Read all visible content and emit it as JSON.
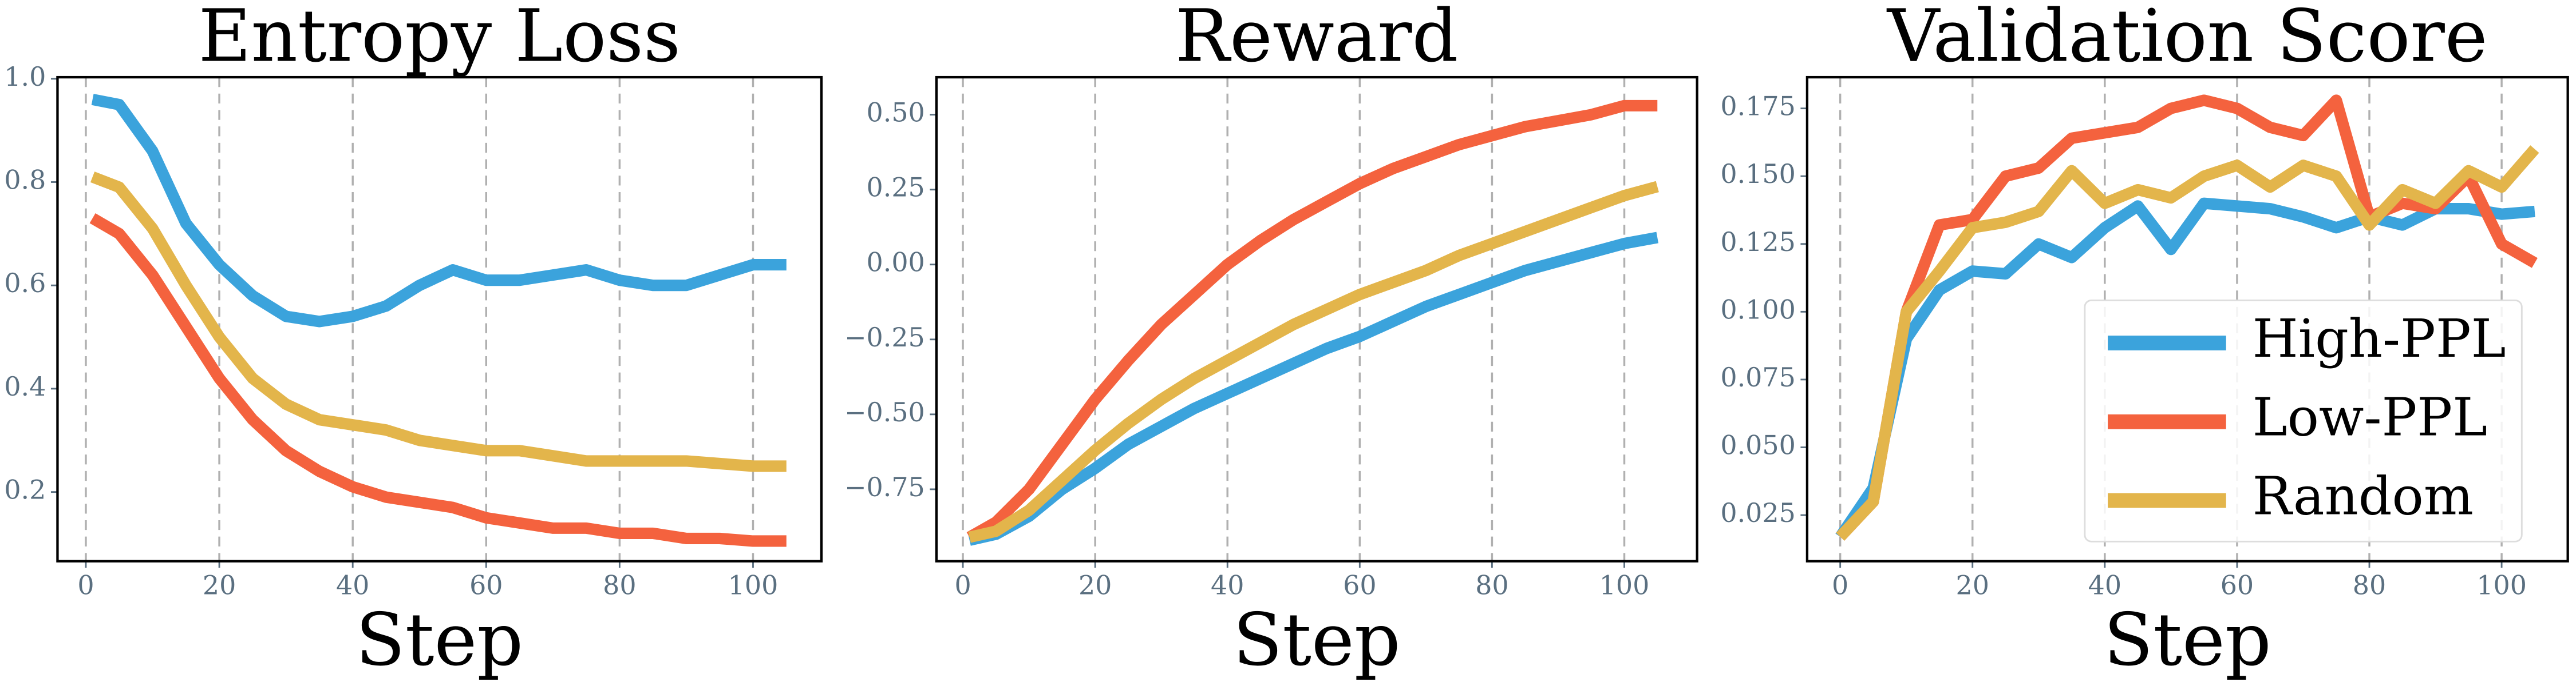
{
  "chart_data": [
    {
      "type": "line",
      "title": "Entropy Loss",
      "xlabel": "Step",
      "x": [
        1,
        5,
        10,
        15,
        20,
        25,
        30,
        35,
        40,
        45,
        50,
        55,
        60,
        65,
        70,
        75,
        80,
        85,
        90,
        95,
        100,
        105
      ],
      "series": [
        {
          "color": "#3ba3dc",
          "values": [
            0.96,
            0.95,
            0.86,
            0.72,
            0.64,
            0.58,
            0.54,
            0.53,
            0.54,
            0.56,
            0.6,
            0.63,
            0.61,
            0.61,
            0.62,
            0.63,
            0.61,
            0.6,
            0.6,
            0.62,
            0.64,
            0.64
          ]
        },
        {
          "color": "#f4623e",
          "values": [
            0.73,
            0.7,
            0.62,
            0.52,
            0.42,
            0.34,
            0.28,
            0.24,
            0.21,
            0.19,
            0.18,
            0.17,
            0.15,
            0.14,
            0.13,
            0.13,
            0.12,
            0.12,
            0.11,
            0.11,
            0.105,
            0.105
          ]
        },
        {
          "color": "#e3b54b",
          "values": [
            0.81,
            0.79,
            0.71,
            0.6,
            0.5,
            0.42,
            0.37,
            0.34,
            0.33,
            0.32,
            0.3,
            0.29,
            0.28,
            0.28,
            0.27,
            0.26,
            0.26,
            0.26,
            0.26,
            0.255,
            0.25,
            0.25
          ]
        }
      ],
      "xlim": [
        -4.25,
        110.25
      ],
      "ylim": [
        0.066,
        1.003
      ],
      "xticks": [
        0,
        20,
        40,
        60,
        80,
        100
      ],
      "yticks": [
        0.2,
        0.4,
        0.6,
        0.8,
        {
          "value": 1,
          "label": "1.0"
        }
      ],
      "grid": "x"
    },
    {
      "type": "line",
      "title": "Reward",
      "xlabel": "Step",
      "x": [
        1,
        5,
        10,
        15,
        20,
        25,
        30,
        35,
        40,
        45,
        50,
        55,
        60,
        65,
        70,
        75,
        80,
        85,
        90,
        95,
        100,
        105
      ],
      "series": [
        {
          "color": "#3ba3dc",
          "values": [
            -0.92,
            -0.9,
            -0.84,
            -0.75,
            -0.68,
            -0.6,
            -0.54,
            -0.48,
            -0.43,
            -0.38,
            -0.33,
            -0.28,
            -0.24,
            -0.19,
            -0.14,
            -0.1,
            -0.06,
            -0.02,
            0.01,
            0.04,
            0.07,
            0.09
          ]
        },
        {
          "color": "#f4623e",
          "values": [
            -0.91,
            -0.86,
            -0.75,
            -0.6,
            -0.45,
            -0.32,
            -0.2,
            -0.1,
            0.0,
            0.08,
            0.15,
            0.21,
            0.27,
            0.32,
            0.36,
            0.4,
            0.43,
            0.46,
            0.48,
            0.5,
            0.53,
            0.53
          ]
        },
        {
          "color": "#e3b54b",
          "values": [
            -0.91,
            -0.89,
            -0.82,
            -0.72,
            -0.62,
            -0.53,
            -0.45,
            -0.38,
            -0.32,
            -0.26,
            -0.2,
            -0.15,
            -0.1,
            -0.06,
            -0.02,
            0.03,
            0.07,
            0.11,
            0.15,
            0.19,
            0.23,
            0.26
          ]
        }
      ],
      "xlim": [
        -4,
        111
      ],
      "ylim": [
        -0.99,
        0.625
      ],
      "xticks": [
        0,
        20,
        40,
        60,
        80,
        100
      ],
      "yticks": [
        {
          "value": -0.75,
          "label": "−0.75"
        },
        {
          "value": -0.5,
          "label": "−0.50"
        },
        {
          "value": -0.25,
          "label": "−0.25"
        },
        {
          "value": 0,
          "label": "0.00"
        },
        0.25,
        {
          "value": 0.5,
          "label": "0.50"
        }
      ],
      "grid": "x"
    },
    {
      "type": "line",
      "title": "Validation Score",
      "xlabel": "Step",
      "x": [
        0,
        5,
        10,
        15,
        20,
        25,
        30,
        35,
        40,
        45,
        50,
        55,
        60,
        65,
        70,
        75,
        80,
        85,
        90,
        95,
        100,
        105
      ],
      "series": [
        {
          "name": "High-PPL",
          "color": "#3ba3dc",
          "values": [
            0.017,
            0.035,
            0.09,
            0.108,
            0.115,
            0.114,
            0.125,
            0.12,
            0.131,
            0.139,
            0.123,
            0.14,
            0.139,
            0.138,
            0.135,
            0.131,
            0.135,
            0.132,
            0.138,
            0.138,
            0.136,
            0.137
          ]
        },
        {
          "name": "Low-PPL",
          "color": "#f4623e",
          "values": [
            0.017,
            0.03,
            0.1,
            0.132,
            0.134,
            0.15,
            0.153,
            0.164,
            0.166,
            0.168,
            0.175,
            0.178,
            0.175,
            0.168,
            0.165,
            0.178,
            0.135,
            0.14,
            0.138,
            0.15,
            0.125,
            0.118
          ]
        },
        {
          "name": "Random",
          "color": "#e3b54b",
          "values": [
            0.017,
            0.03,
            0.1,
            0.115,
            0.131,
            0.133,
            0.137,
            0.152,
            0.14,
            0.145,
            0.142,
            0.15,
            0.154,
            0.146,
            0.154,
            0.15,
            0.132,
            0.145,
            0.14,
            0.152,
            0.146,
            0.16
          ]
        }
      ],
      "xlim": [
        -5,
        110
      ],
      "ylim": [
        0.008,
        0.1865
      ],
      "xticks": [
        0,
        20,
        40,
        60,
        80,
        100
      ],
      "yticks": [
        0.025,
        {
          "value": 0.05,
          "label": "0.050"
        },
        0.075,
        {
          "value": 0.1,
          "label": "0.100"
        },
        0.125,
        {
          "value": 0.15,
          "label": "0.150"
        },
        0.175
      ],
      "grid": "x",
      "legend": "lower right"
    }
  ]
}
